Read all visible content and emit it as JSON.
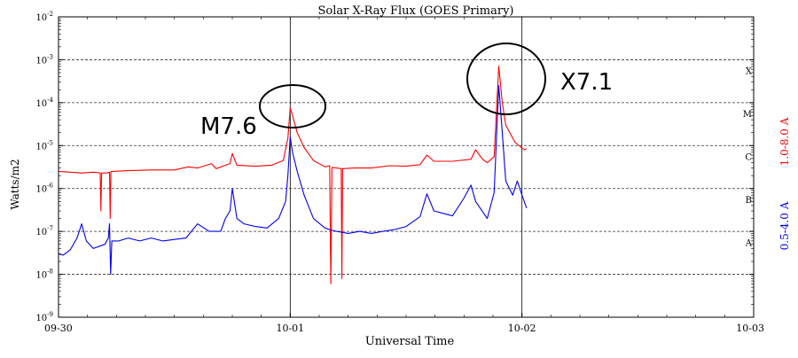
{
  "chart_data": {
    "type": "line",
    "title": "Solar X-Ray Flux (GOES Primary)",
    "xlabel": "Universal Time",
    "ylabel": "Watts/m2",
    "y_scale": "log",
    "y_ticks": [
      {
        "exponent": -9
      },
      {
        "exponent": -8
      },
      {
        "exponent": -7
      },
      {
        "exponent": -6
      },
      {
        "exponent": -5
      },
      {
        "exponent": -4
      },
      {
        "exponent": -3
      },
      {
        "exponent": -2
      }
    ],
    "x_ticks": [
      "09-30",
      "10-01",
      "10-02",
      "10-03"
    ],
    "x_range_days": [
      0,
      3
    ],
    "ylim_exponent": [
      -9,
      -2
    ],
    "grid": "horizontal-dashed",
    "day_markers": [
      "10-01",
      "10-02"
    ],
    "right_classes": [
      {
        "label": "A",
        "exponent": -8
      },
      {
        "label": "B",
        "exponent": -7
      },
      {
        "label": "C",
        "exponent": -6
      },
      {
        "label": "M",
        "exponent": -5
      },
      {
        "label": "X",
        "exponent": -4
      }
    ],
    "series": [
      {
        "name": "1.0-8.0 A",
        "color": "#ff0000",
        "points": [
          [
            0.0,
            2.5e-06
          ],
          [
            0.1,
            2.3e-06
          ],
          [
            0.15,
            2.4e-06
          ],
          [
            0.18,
            2.3e-06
          ],
          [
            0.183,
            3e-07
          ],
          [
            0.186,
            2.3e-06
          ],
          [
            0.21,
            2.3e-06
          ],
          [
            0.22,
            2.4e-06
          ],
          [
            0.223,
            2e-07
          ],
          [
            0.226,
            2.5e-06
          ],
          [
            0.235,
            2.5e-06
          ],
          [
            0.3,
            2.6e-06
          ],
          [
            0.4,
            2.7e-06
          ],
          [
            0.5,
            2.7e-06
          ],
          [
            0.56,
            3.2e-06
          ],
          [
            0.6,
            3e-06
          ],
          [
            0.66,
            3.8e-06
          ],
          [
            0.68,
            2.9e-06
          ],
          [
            0.74,
            3.8e-06
          ],
          [
            0.75,
            6.5e-06
          ],
          [
            0.77,
            3.5e-06
          ],
          [
            0.85,
            3.3e-06
          ],
          [
            0.92,
            3.5e-06
          ],
          [
            0.97,
            4.5e-06
          ],
          [
            0.99,
            1.5e-05
          ],
          [
            1.0,
            7.6e-05
          ],
          [
            1.01,
            5e-05
          ],
          [
            1.03,
            2e-05
          ],
          [
            1.06,
            9e-06
          ],
          [
            1.1,
            4.5e-06
          ],
          [
            1.15,
            3.2e-06
          ],
          [
            1.17,
            3.4e-06
          ],
          [
            1.175,
            6e-09
          ],
          [
            1.18,
            3.1e-06
          ],
          [
            1.2,
            3e-06
          ],
          [
            1.22,
            2.9e-06
          ],
          [
            1.223,
            8e-09
          ],
          [
            1.226,
            2.9e-06
          ],
          [
            1.28,
            3e-06
          ],
          [
            1.35,
            3e-06
          ],
          [
            1.43,
            3.4e-06
          ],
          [
            1.5,
            3.3e-06
          ],
          [
            1.56,
            3.6e-06
          ],
          [
            1.59,
            6e-06
          ],
          [
            1.62,
            4.3e-06
          ],
          [
            1.7,
            4.3e-06
          ],
          [
            1.78,
            4.8e-06
          ],
          [
            1.8,
            8e-06
          ],
          [
            1.83,
            4.8e-06
          ],
          [
            1.85,
            4e-06
          ],
          [
            1.88,
            5.5e-06
          ],
          [
            1.9,
            0.00071
          ],
          [
            1.915,
            0.0001
          ],
          [
            1.93,
            3e-05
          ],
          [
            1.97,
            1.2e-05
          ],
          [
            2.0,
            8.8e-06
          ],
          [
            2.01,
            8e-06
          ],
          [
            2.02,
            8.5e-06
          ]
        ]
      },
      {
        "name": "0.5-4.0 A",
        "color": "#0000ee",
        "points": [
          [
            0.0,
            3e-08
          ],
          [
            0.02,
            2.8e-08
          ],
          [
            0.05,
            3.7e-08
          ],
          [
            0.08,
            7e-08
          ],
          [
            0.1,
            1.5e-07
          ],
          [
            0.12,
            6e-08
          ],
          [
            0.15,
            4e-08
          ],
          [
            0.2,
            5e-08
          ],
          [
            0.215,
            7e-08
          ],
          [
            0.22,
            1.5e-07
          ],
          [
            0.225,
            1e-08
          ],
          [
            0.23,
            6e-08
          ],
          [
            0.26,
            6e-08
          ],
          [
            0.3,
            7e-08
          ],
          [
            0.35,
            6e-08
          ],
          [
            0.4,
            7e-08
          ],
          [
            0.45,
            6e-08
          ],
          [
            0.5,
            6.5e-08
          ],
          [
            0.55,
            7e-08
          ],
          [
            0.6,
            1.5e-07
          ],
          [
            0.65,
            1e-07
          ],
          [
            0.7,
            1e-07
          ],
          [
            0.72,
            2e-07
          ],
          [
            0.74,
            3e-07
          ],
          [
            0.75,
            1e-06
          ],
          [
            0.77,
            2e-07
          ],
          [
            0.8,
            1.5e-07
          ],
          [
            0.85,
            1.3e-07
          ],
          [
            0.9,
            1.2e-07
          ],
          [
            0.95,
            2e-07
          ],
          [
            0.98,
            5e-07
          ],
          [
            0.99,
            2e-06
          ],
          [
            1.0,
            1.6e-05
          ],
          [
            1.01,
            7e-06
          ],
          [
            1.03,
            2.5e-06
          ],
          [
            1.06,
            7e-07
          ],
          [
            1.1,
            2e-07
          ],
          [
            1.15,
            1.2e-07
          ],
          [
            1.17,
            1.1e-07
          ],
          [
            1.2,
            1e-07
          ],
          [
            1.25,
            9e-08
          ],
          [
            1.3,
            1e-07
          ],
          [
            1.35,
            9e-08
          ],
          [
            1.4,
            1e-07
          ],
          [
            1.45,
            1.1e-07
          ],
          [
            1.5,
            1.3e-07
          ],
          [
            1.56,
            2.2e-07
          ],
          [
            1.58,
            5e-07
          ],
          [
            1.59,
            7.5e-07
          ],
          [
            1.62,
            3e-07
          ],
          [
            1.7,
            2.3e-07
          ],
          [
            1.75,
            6e-07
          ],
          [
            1.78,
            1.2e-06
          ],
          [
            1.8,
            5e-07
          ],
          [
            1.85,
            2e-07
          ],
          [
            1.88,
            8e-07
          ],
          [
            1.9,
            0.00025
          ],
          [
            1.915,
            2e-05
          ],
          [
            1.93,
            1.5e-06
          ],
          [
            1.96,
            7e-07
          ],
          [
            1.98,
            1.5e-06
          ],
          [
            2.0,
            7e-07
          ],
          [
            2.02,
            3.5e-07
          ]
        ]
      }
    ],
    "annotations": [
      {
        "label": "M7.6"
      },
      {
        "label": "X7.1"
      }
    ],
    "colors": {
      "axis": "#000000",
      "grid": "#333333",
      "short_channel": "#0000ee",
      "long_channel": "#ff0000",
      "marker": "#000000"
    }
  }
}
